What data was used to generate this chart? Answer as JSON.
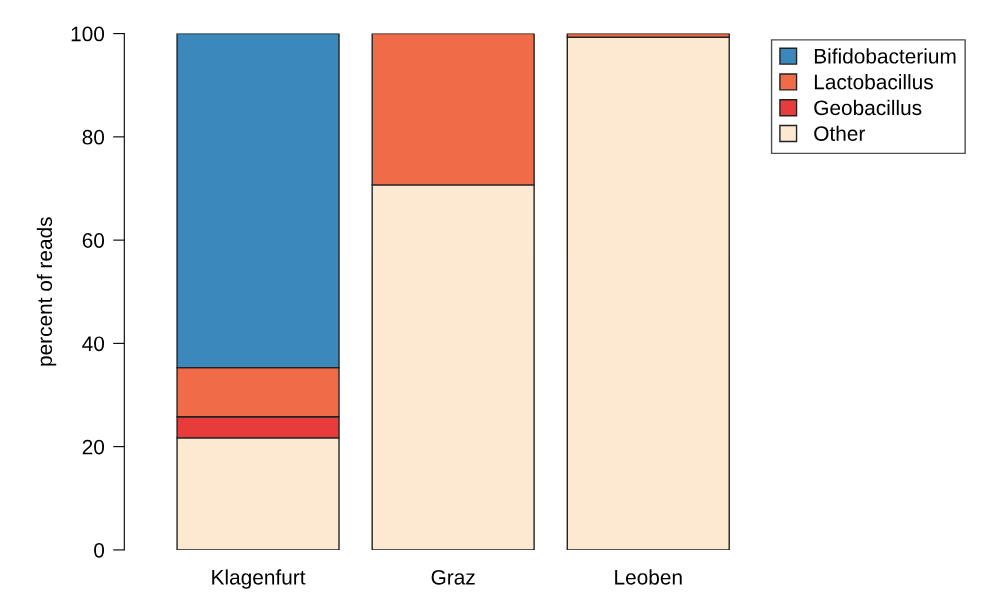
{
  "chart_data": {
    "type": "bar",
    "stacked": true,
    "ylabel": "percent of reads",
    "categories": [
      "Klagenfurt",
      "Graz",
      "Leoben"
    ],
    "series": [
      {
        "name": "Other",
        "color": "#fde8d2",
        "values": [
          21.7,
          70.7,
          99.3
        ]
      },
      {
        "name": "Geobacillus",
        "color": "#e83c3c",
        "values": [
          4.1,
          null,
          null
        ]
      },
      {
        "name": "Lactobacillus",
        "color": "#f06c48",
        "values": [
          9.5,
          29.3,
          0.7
        ]
      },
      {
        "name": "Bifidobacterium",
        "color": "#3a88bc",
        "values": [
          64.7,
          null,
          null
        ]
      }
    ],
    "ylim": [
      0,
      100
    ],
    "yticks": [
      0,
      20,
      40,
      60,
      80,
      100
    ],
    "grid": false,
    "legend": "top right"
  }
}
